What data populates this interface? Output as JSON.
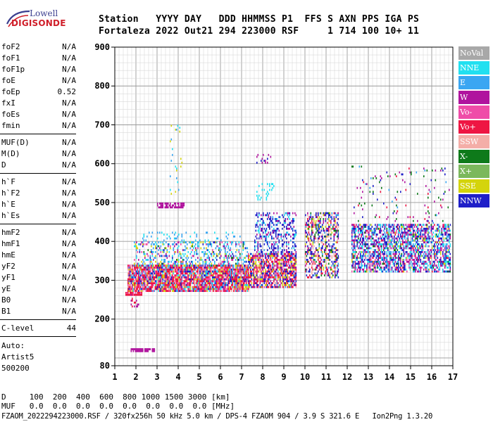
{
  "logo": {
    "line1": "Lowell",
    "line2": "DIGISONDE"
  },
  "header": {
    "line1": "Station   YYYY DAY   DDD HHMMSS P1  FFS S AXN PPS IGA PS",
    "line2": "Fortaleza 2022 Out21 294 223000 RSF     1 714 100 10+ 11"
  },
  "sidebar": {
    "group1": [
      {
        "label": "foF2",
        "value": "N/A"
      },
      {
        "label": "foF1",
        "value": "N/A"
      },
      {
        "label": "foF1p",
        "value": "N/A"
      },
      {
        "label": "foE",
        "value": "N/A"
      },
      {
        "label": "foEp",
        "value": "0.52"
      },
      {
        "label": "fxI",
        "value": "N/A"
      },
      {
        "label": "foEs",
        "value": "N/A"
      },
      {
        "label": "fmin",
        "value": "N/A"
      }
    ],
    "group2": [
      {
        "label": "MUF(D)",
        "value": "N/A"
      },
      {
        "label": "M(D)",
        "value": "N/A"
      },
      {
        "label": "D",
        "value": "N/A"
      }
    ],
    "group3": [
      {
        "label": "h`F",
        "value": "N/A"
      },
      {
        "label": "h`F2",
        "value": "N/A"
      },
      {
        "label": "h`E",
        "value": "N/A"
      },
      {
        "label": "h`Es",
        "value": "N/A"
      }
    ],
    "group4": [
      {
        "label": "hmF2",
        "value": "N/A"
      },
      {
        "label": "hmF1",
        "value": "N/A"
      },
      {
        "label": "hmE",
        "value": "N/A"
      },
      {
        "label": "yF2",
        "value": "N/A"
      },
      {
        "label": "yF1",
        "value": "N/A"
      },
      {
        "label": "yE",
        "value": "N/A"
      },
      {
        "label": "B0",
        "value": "N/A"
      },
      {
        "label": "B1",
        "value": "N/A"
      }
    ],
    "clevel": {
      "label": "C-level",
      "value": "44"
    },
    "auto": [
      "Auto:",
      "Artist5",
      "500200"
    ]
  },
  "footer": {
    "line1": "D     100  200  400  600  800 1000 1500 3000 [km]",
    "line2": "MUF   0.0  0.0  0.0  0.0  0.0  0.0  0.0  0.0 [MHz]",
    "line3": "FZAOM_2022294223000.RSF / 320fx256h 50 kHz 5.0 km / DPS-4 FZAOM 904 / 3.9 S 321.6 E   Ion2Png 1.3.20"
  },
  "chart_data": {
    "type": "scatter",
    "title": "",
    "xlabel": "",
    "ylabel": "",
    "xlim": [
      1,
      17
    ],
    "ylim": [
      80,
      900
    ],
    "xticks": [
      1,
      2,
      3,
      4,
      5,
      6,
      7,
      8,
      9,
      10,
      11,
      12,
      13,
      14,
      15,
      16,
      17
    ],
    "yticks": [
      80,
      200,
      300,
      400,
      500,
      600,
      700,
      800,
      900
    ],
    "grid": true,
    "legend_position": "right",
    "legend": [
      {
        "name": "NoVal",
        "color": "#a8a8a8"
      },
      {
        "name": "NNE",
        "color": "#22e0f0"
      },
      {
        "name": "E",
        "color": "#3aa6f2"
      },
      {
        "name": "W",
        "color": "#b0149e"
      },
      {
        "name": "Vo-",
        "color": "#ef4ca8"
      },
      {
        "name": "Vo+",
        "color": "#ee1643"
      },
      {
        "name": "SSW",
        "color": "#f4aea8"
      },
      {
        "name": "X-",
        "color": "#0e7a1a"
      },
      {
        "name": "X+",
        "color": "#7bb85c"
      },
      {
        "name": "SSE",
        "color": "#d4d40c"
      },
      {
        "name": "NNW",
        "color": "#1f1fc8"
      }
    ],
    "regions": [
      {
        "x": [
          1.5,
          2.3
        ],
        "y": [
          258,
          268
        ],
        "density": 0.95,
        "mix": {
          "Vo+": 0.8,
          "Vo-": 0.2
        }
      },
      {
        "x": [
          1.75,
          2.1
        ],
        "y": [
          230,
          262
        ],
        "density": 0.35,
        "mix": {
          "W": 0.5,
          "Vo+": 0.5
        }
      },
      {
        "x": [
          1.75,
          2.9
        ],
        "y": [
          112,
          124
        ],
        "density": 0.8,
        "mix": {
          "W": 0.9,
          "Vo-": 0.1
        }
      },
      {
        "x": [
          1.6,
          7.3
        ],
        "y": [
          268,
          335
        ],
        "density": 0.9,
        "mix": {
          "Vo+": 0.35,
          "Vo-": 0.15,
          "SSE": 0.1,
          "NNW": 0.1,
          "SSW": 0.1,
          "E": 0.1,
          "W": 0.05,
          "NNE": 0.05
        }
      },
      {
        "x": [
          1.9,
          7.3
        ],
        "y": [
          335,
          395
        ],
        "density": 0.35,
        "mix": {
          "E": 0.3,
          "NNE": 0.2,
          "SSE": 0.15,
          "Vo-": 0.1,
          "W": 0.1,
          "NNW": 0.1,
          "X-": 0.05
        }
      },
      {
        "x": [
          2.2,
          6.9
        ],
        "y": [
          395,
          420
        ],
        "density": 0.12,
        "mix": {
          "E": 0.6,
          "NNE": 0.4
        }
      },
      {
        "x": [
          3.0,
          4.3
        ],
        "y": [
          485,
          498
        ],
        "density": 0.7,
        "mix": {
          "W": 1.0
        }
      },
      {
        "x": [
          3.6,
          4.2
        ],
        "y": [
          520,
          700
        ],
        "density": 0.06,
        "mix": {
          "SSE": 0.5,
          "NNE": 0.3,
          "E": 0.2
        }
      },
      {
        "x": [
          7.3,
          9.6
        ],
        "y": [
          280,
          365
        ],
        "density": 0.75,
        "mix": {
          "Vo+": 0.25,
          "NNW": 0.2,
          "SSE": 0.15,
          "W": 0.15,
          "Vo-": 0.1,
          "SSW": 0.1,
          "E": 0.05
        }
      },
      {
        "x": [
          7.6,
          9.6
        ],
        "y": [
          365,
          470
        ],
        "density": 0.35,
        "mix": {
          "NNW": 0.5,
          "W": 0.2,
          "E": 0.15,
          "NNE": 0.15
        }
      },
      {
        "x": [
          7.7,
          8.5
        ],
        "y": [
          505,
          545
        ],
        "density": 0.2,
        "mix": {
          "NNE": 1.0
        }
      },
      {
        "x": [
          7.7,
          8.4
        ],
        "y": [
          600,
          625
        ],
        "density": 0.15,
        "mix": {
          "NNW": 0.6,
          "W": 0.4
        }
      },
      {
        "x": [
          10.0,
          11.6
        ],
        "y": [
          305,
          470
        ],
        "density": 0.5,
        "mix": {
          "NNW": 0.3,
          "SSW": 0.15,
          "Vo+": 0.15,
          "E": 0.1,
          "X-": 0.1,
          "SSE": 0.1,
          "W": 0.1
        }
      },
      {
        "x": [
          12.2,
          16.9
        ],
        "y": [
          320,
          440
        ],
        "density": 0.6,
        "mix": {
          "NNW": 0.25,
          "W": 0.2,
          "E": 0.15,
          "NNE": 0.15,
          "Vo-": 0.1,
          "Vo+": 0.05,
          "SSE": 0.05,
          "X-": 0.05
        }
      },
      {
        "x": [
          12.2,
          16.9
        ],
        "y": [
          440,
          590
        ],
        "density": 0.05,
        "mix": {
          "X-": 0.3,
          "W": 0.25,
          "NNW": 0.2,
          "Vo+": 0.15,
          "E": 0.1
        }
      }
    ]
  }
}
